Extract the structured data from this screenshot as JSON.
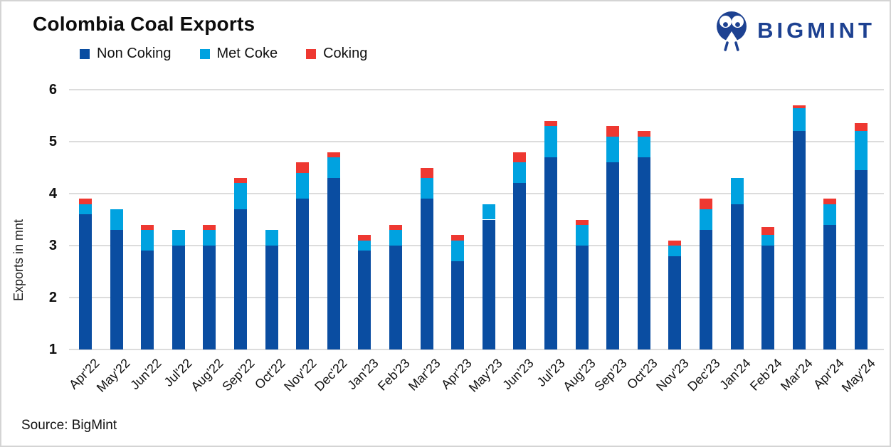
{
  "header": {
    "logo_text": "BIGMINT",
    "logo_color": "#1d4191"
  },
  "footer": {
    "source": "Source: BigMint"
  },
  "chart_data": {
    "type": "bar",
    "stacked": true,
    "title": "Colombia Coal Exports",
    "ylabel": "Exports in mnt",
    "ylim": [
      1,
      6
    ],
    "yticks": [
      1,
      2,
      3,
      4,
      5,
      6
    ],
    "grid": true,
    "legend_position": "top-left",
    "categories": [
      "Apr'22",
      "May'22",
      "Jun'22",
      "Jul'22",
      "Aug'22",
      "Sep'22",
      "Oct'22",
      "Nov'22",
      "Dec'22",
      "Jan'23",
      "Feb'23",
      "Mar'23",
      "Apr'23",
      "May'23",
      "Jun'23",
      "Jul'23",
      "Aug'23",
      "Sep'23",
      "Oct'23",
      "Nov'23",
      "Dec'23",
      "Jan'24",
      "Feb'24",
      "Mar'24",
      "Apr'24",
      "May'24"
    ],
    "series": [
      {
        "name": "Non Coking",
        "color": "#0a4da1",
        "values": [
          3.6,
          3.3,
          2.9,
          3.0,
          3.0,
          3.7,
          3.0,
          3.9,
          4.3,
          2.9,
          3.0,
          3.9,
          2.7,
          3.5,
          4.2,
          4.7,
          3.0,
          4.6,
          4.7,
          2.8,
          3.3,
          3.8,
          3.0,
          5.2,
          3.4,
          4.45
        ]
      },
      {
        "name": "Met Coke",
        "color": "#00a2e0",
        "values": [
          0.2,
          0.4,
          0.4,
          0.3,
          0.3,
          0.5,
          0.3,
          0.5,
          0.4,
          0.2,
          0.3,
          0.4,
          0.4,
          0.3,
          0.4,
          0.6,
          0.4,
          0.5,
          0.4,
          0.2,
          0.4,
          0.5,
          0.2,
          0.45,
          0.4,
          0.75
        ]
      },
      {
        "name": "Coking",
        "color": "#ee3831",
        "values": [
          0.1,
          0,
          0.1,
          0,
          0.1,
          0.1,
          0,
          0.2,
          0.1,
          0.1,
          0.1,
          0.2,
          0.1,
          0,
          0.2,
          0.1,
          0.1,
          0.2,
          0.1,
          0.1,
          0.2,
          0,
          0.15,
          0.05,
          0.1,
          0.15
        ]
      }
    ]
  }
}
